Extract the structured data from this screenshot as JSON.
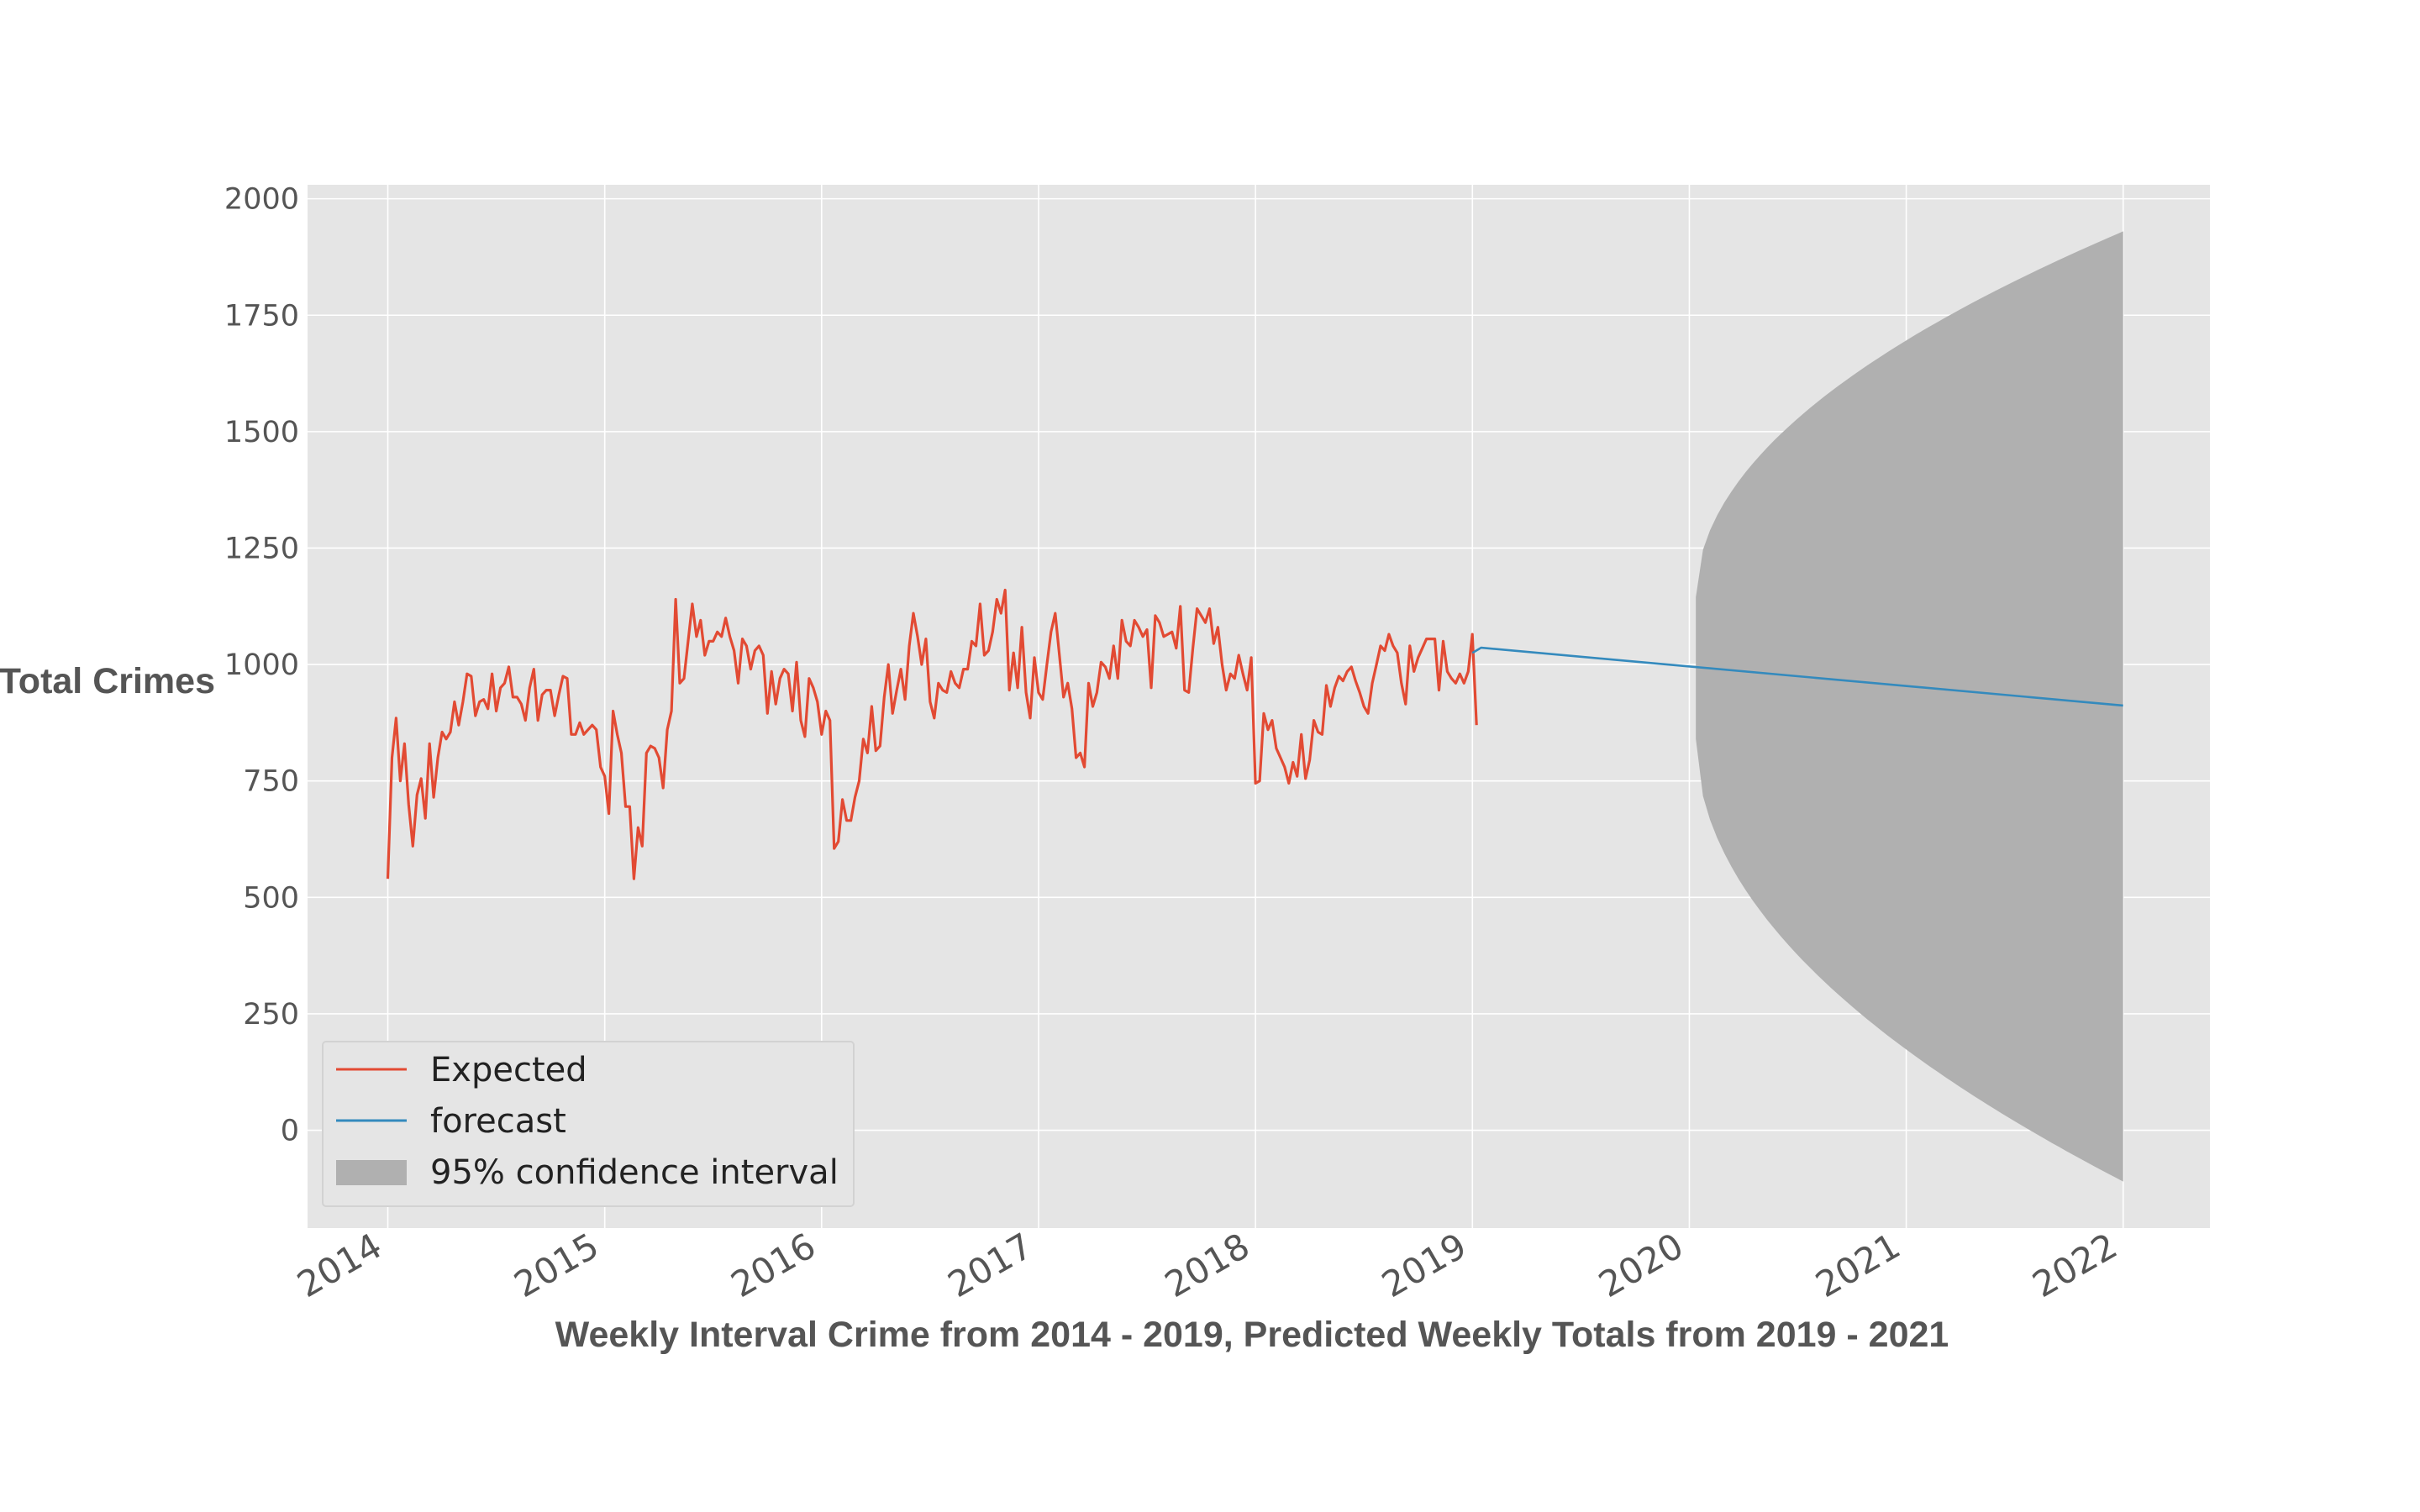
{
  "chart_data": {
    "type": "line",
    "title": "",
    "xlabel": "Weekly Interval Crime from 2014 - 2019, Predicted Weekly Totals from 2019 - 2021",
    "ylabel": "Total Crimes",
    "xlim": [
      2013.63,
      2022.4
    ],
    "ylim": [
      -210,
      2030
    ],
    "x_ticks": [
      2014,
      2015,
      2016,
      2017,
      2018,
      2019,
      2020,
      2021,
      2022
    ],
    "x_tick_labels": [
      "2014",
      "2015",
      "2016",
      "2017",
      "2018",
      "2019",
      "2020",
      "2021",
      "2022"
    ],
    "y_ticks": [
      0,
      250,
      500,
      750,
      1000,
      1250,
      1500,
      1750,
      2000
    ],
    "y_tick_labels": [
      "0",
      "250",
      "500",
      "750",
      "1000",
      "1250",
      "1500",
      "1750",
      "2000"
    ],
    "grid": true,
    "legend_position": "lower-left",
    "series": [
      {
        "name": "Expected",
        "kind": "line",
        "color": "#E24A33",
        "x_start": 2014.0,
        "x_step": 0.01923,
        "values": [
          540,
          800,
          885,
          750,
          830,
          700,
          610,
          720,
          755,
          670,
          830,
          715,
          800,
          855,
          840,
          855,
          920,
          870,
          920,
          980,
          975,
          890,
          920,
          925,
          905,
          980,
          900,
          950,
          960,
          995,
          930,
          930,
          915,
          880,
          950,
          990,
          880,
          935,
          945,
          945,
          890,
          935,
          975,
          970,
          850,
          850,
          875,
          850,
          860,
          870,
          860,
          780,
          760,
          680,
          900,
          850,
          810,
          695,
          695,
          540,
          650,
          610,
          810,
          825,
          820,
          800,
          735,
          860,
          900,
          1140,
          960,
          970,
          1050,
          1130,
          1060,
          1095,
          1020,
          1050,
          1050,
          1070,
          1060,
          1100,
          1060,
          1030,
          960,
          1055,
          1040,
          990,
          1030,
          1040,
          1020,
          895,
          985,
          915,
          970,
          990,
          980,
          900,
          1005,
          880,
          845,
          970,
          950,
          920,
          850,
          900,
          880,
          605,
          620,
          710,
          665,
          665,
          715,
          750,
          840,
          810,
          910,
          815,
          825,
          930,
          1000,
          895,
          945,
          990,
          925,
          1040,
          1110,
          1060,
          1000,
          1055,
          920,
          885,
          960,
          945,
          940,
          985,
          960,
          950,
          990,
          990,
          1050,
          1040,
          1130,
          1020,
          1030,
          1070,
          1140,
          1110,
          1160,
          945,
          1025,
          950,
          1080,
          940,
          885,
          1015,
          940,
          925,
          1000,
          1070,
          1110,
          1020,
          930,
          960,
          905,
          800,
          810,
          780,
          960,
          910,
          940,
          1005,
          995,
          970,
          1040,
          970,
          1095,
          1050,
          1040,
          1095,
          1080,
          1060,
          1075,
          950,
          1105,
          1090,
          1060,
          1065,
          1070,
          1035,
          1125,
          945,
          940,
          1035,
          1120,
          1105,
          1090,
          1120,
          1045,
          1080,
          1000,
          945,
          980,
          970,
          1020,
          980,
          945,
          1015,
          745,
          750,
          895,
          860,
          880,
          820,
          800,
          780,
          745,
          790,
          760,
          850,
          755,
          795,
          880,
          855,
          850,
          955,
          910,
          950,
          975,
          965,
          985,
          995,
          965,
          940,
          910,
          895,
          960,
          1000,
          1040,
          1030,
          1065,
          1040,
          1025,
          960,
          915,
          1040,
          985,
          1015,
          1035,
          1055,
          1055,
          1055,
          945,
          1050,
          985,
          970,
          960,
          980,
          960,
          985,
          1065,
          870
        ]
      },
      {
        "name": "forecast",
        "kind": "line",
        "color": "#348ABD",
        "x": [
          2019.0,
          2019.04,
          2022.0
        ],
        "values": [
          1025,
          1036,
          912
        ]
      },
      {
        "name": "95% confidence interval",
        "kind": "band",
        "color": "#B0B0B0",
        "x_start": 2020.03,
        "x_end": 2022.0,
        "lower_start": 840,
        "upper_start": 1145,
        "lower_end": -110,
        "upper_end": 1930
      }
    ]
  }
}
